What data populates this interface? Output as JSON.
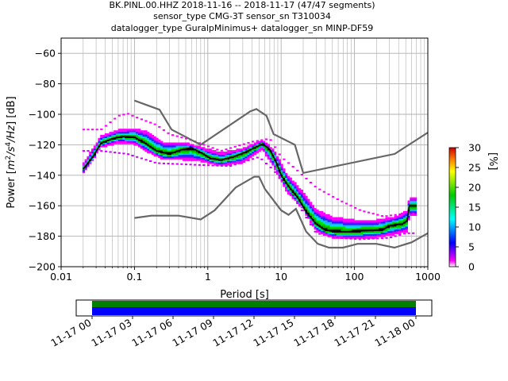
{
  "title_lines": [
    "BK.PINL.00.HHZ   2018-11-16 -- 2018-11-17  (47/47 segments)",
    "sensor_type CMG-3T sensor_sn T310034",
    "datalogger_type GuralpMinimus+ datalogger_sn MINP-DF59"
  ],
  "chart_data": {
    "type": "heatmap",
    "xlabel": "Period [s]",
    "ylabel_parts": [
      "Power [",
      "m",
      "2",
      "/s",
      "4",
      "/Hz",
      "] [dB]"
    ],
    "x_scale": "log",
    "xlim": [
      0.01,
      1000
    ],
    "ylim": [
      -200,
      -50
    ],
    "x_ticks": [
      {
        "v": 0.01,
        "label": "0.01"
      },
      {
        "v": 0.1,
        "label": "0.1"
      },
      {
        "v": 1,
        "label": "1"
      },
      {
        "v": 10,
        "label": "10"
      },
      {
        "v": 100,
        "label": "100"
      },
      {
        "v": 1000,
        "label": "1000"
      }
    ],
    "y_ticks": [
      {
        "v": -60,
        "label": "−60"
      },
      {
        "v": -80,
        "label": "−80"
      },
      {
        "v": -100,
        "label": "−100"
      },
      {
        "v": -120,
        "label": "−120"
      },
      {
        "v": -140,
        "label": "−140"
      },
      {
        "v": -160,
        "label": "−160"
      },
      {
        "v": -180,
        "label": "−180"
      },
      {
        "v": -200,
        "label": "−200"
      }
    ],
    "grid": true,
    "colorbar": {
      "label": "[%]",
      "min": 0,
      "max": 30,
      "ticks": [
        {
          "v": 0,
          "label": "0"
        },
        {
          "v": 5,
          "label": "5"
        },
        {
          "v": 10,
          "label": "10"
        },
        {
          "v": 15,
          "label": "15"
        },
        {
          "v": 20,
          "label": "20"
        },
        {
          "v": 25,
          "label": "25"
        },
        {
          "v": 30,
          "label": "30"
        }
      ]
    },
    "noise_model_high": [
      [
        0.1,
        -91
      ],
      [
        0.22,
        -97
      ],
      [
        0.32,
        -110
      ],
      [
        0.8,
        -120
      ],
      [
        3.8,
        -98
      ],
      [
        4.6,
        -96.5
      ],
      [
        6.3,
        -101
      ],
      [
        7.9,
        -113
      ],
      [
        15.4,
        -120
      ],
      [
        20,
        -138.5
      ],
      [
        354,
        -126
      ],
      [
        1000,
        -112
      ]
    ],
    "noise_model_low": [
      [
        0.1,
        -168
      ],
      [
        0.17,
        -166.5
      ],
      [
        0.4,
        -166.5
      ],
      [
        0.8,
        -169
      ],
      [
        1.24,
        -163
      ],
      [
        2.4,
        -148
      ],
      [
        4.3,
        -141
      ],
      [
        5,
        -141
      ],
      [
        6,
        -149
      ],
      [
        10,
        -163
      ],
      [
        12.6,
        -166
      ],
      [
        15.9,
        -162
      ],
      [
        21.9,
        -177
      ],
      [
        31.6,
        -185
      ],
      [
        45,
        -187.5
      ],
      [
        70,
        -187.5
      ],
      [
        110,
        -185
      ],
      [
        200,
        -185
      ],
      [
        350,
        -187.5
      ],
      [
        600,
        -184
      ],
      [
        1000,
        -178
      ]
    ],
    "median": [
      [
        0.02,
        -136
      ],
      [
        0.027,
        -128
      ],
      [
        0.035,
        -119
      ],
      [
        0.05,
        -116
      ],
      [
        0.07,
        -114.5
      ],
      [
        0.1,
        -115
      ],
      [
        0.14,
        -119
      ],
      [
        0.2,
        -124
      ],
      [
        0.3,
        -126
      ],
      [
        0.45,
        -123
      ],
      [
        0.6,
        -122
      ],
      [
        0.8,
        -125
      ],
      [
        1.1,
        -129
      ],
      [
        1.5,
        -130
      ],
      [
        2.2,
        -128
      ],
      [
        3.2,
        -125
      ],
      [
        4.5,
        -121.5
      ],
      [
        5.6,
        -119.5
      ],
      [
        7,
        -123
      ],
      [
        8.5,
        -131
      ],
      [
        10,
        -140
      ],
      [
        13,
        -148
      ],
      [
        17,
        -155
      ],
      [
        22,
        -164
      ],
      [
        30,
        -172
      ],
      [
        40,
        -176
      ],
      [
        55,
        -177
      ],
      [
        80,
        -177
      ],
      [
        120,
        -176.5
      ],
      [
        180,
        -176
      ],
      [
        250,
        -175.5
      ],
      [
        300,
        -173
      ],
      [
        450,
        -172
      ],
      [
        520,
        -170
      ],
      [
        560,
        -160
      ],
      [
        700,
        -160
      ]
    ],
    "spread_upper": [
      [
        0.02,
        -133
      ],
      [
        0.035,
        -115
      ],
      [
        0.06,
        -111
      ],
      [
        0.1,
        -110
      ],
      [
        0.15,
        -112
      ],
      [
        0.25,
        -119
      ],
      [
        0.45,
        -119
      ],
      [
        0.8,
        -122
      ],
      [
        1.5,
        -126
      ],
      [
        3,
        -123
      ],
      [
        5.5,
        -117.5
      ],
      [
        8,
        -124
      ],
      [
        12,
        -140
      ],
      [
        20,
        -152
      ],
      [
        30,
        -163
      ],
      [
        50,
        -168
      ],
      [
        100,
        -170
      ],
      [
        200,
        -170
      ],
      [
        350,
        -168
      ],
      [
        520,
        -164
      ],
      [
        560,
        -155
      ],
      [
        700,
        -155
      ]
    ],
    "spread_lower": [
      [
        0.02,
        -138
      ],
      [
        0.035,
        -121
      ],
      [
        0.06,
        -118
      ],
      [
        0.1,
        -119
      ],
      [
        0.15,
        -124
      ],
      [
        0.25,
        -129
      ],
      [
        0.45,
        -129
      ],
      [
        0.8,
        -130
      ],
      [
        1.5,
        -133
      ],
      [
        3,
        -131
      ],
      [
        5.5,
        -122
      ],
      [
        8,
        -134
      ],
      [
        12,
        -150
      ],
      [
        20,
        -162
      ],
      [
        30,
        -176
      ],
      [
        50,
        -180
      ],
      [
        100,
        -181
      ],
      [
        200,
        -180
      ],
      [
        350,
        -178
      ],
      [
        520,
        -176
      ],
      [
        560,
        -166
      ],
      [
        700,
        -166
      ]
    ],
    "outlier_upper": [
      [
        0.035,
        -110
      ],
      [
        0.06,
        -101
      ],
      [
        0.08,
        -99.5
      ],
      [
        0.12,
        -103
      ],
      [
        0.2,
        -107
      ],
      [
        0.3,
        -113
      ],
      [
        0.6,
        -117
      ],
      [
        1.5,
        -124
      ],
      [
        4,
        -118
      ],
      [
        7,
        -116
      ],
      [
        10,
        -128
      ],
      [
        15,
        -135
      ],
      [
        30,
        -148
      ],
      [
        60,
        -156
      ],
      [
        120,
        -163
      ],
      [
        250,
        -167
      ],
      [
        500,
        -165
      ]
    ],
    "outlier_lower": [
      [
        0.035,
        -124
      ],
      [
        0.08,
        -126
      ],
      [
        0.2,
        -132
      ],
      [
        0.6,
        -133
      ],
      [
        2,
        -134
      ],
      [
        5,
        -128
      ],
      [
        8,
        -137
      ],
      [
        15,
        -155
      ],
      [
        30,
        -178
      ],
      [
        60,
        -181
      ],
      [
        120,
        -182
      ],
      [
        300,
        -181
      ],
      [
        500,
        -178
      ]
    ]
  },
  "timeline": {
    "tick_labels": [
      "11-17 00",
      "11-17 03",
      "11-17 06",
      "11-17 09",
      "11-17 12",
      "11-17 15",
      "11-17 18",
      "11-17 21",
      "11-18 00"
    ],
    "coverage_colors": [
      "#008000",
      "#0000ff"
    ]
  },
  "colors": {
    "noise_model": "#666666",
    "median": "#000000",
    "grid": "#b0b0b0"
  }
}
